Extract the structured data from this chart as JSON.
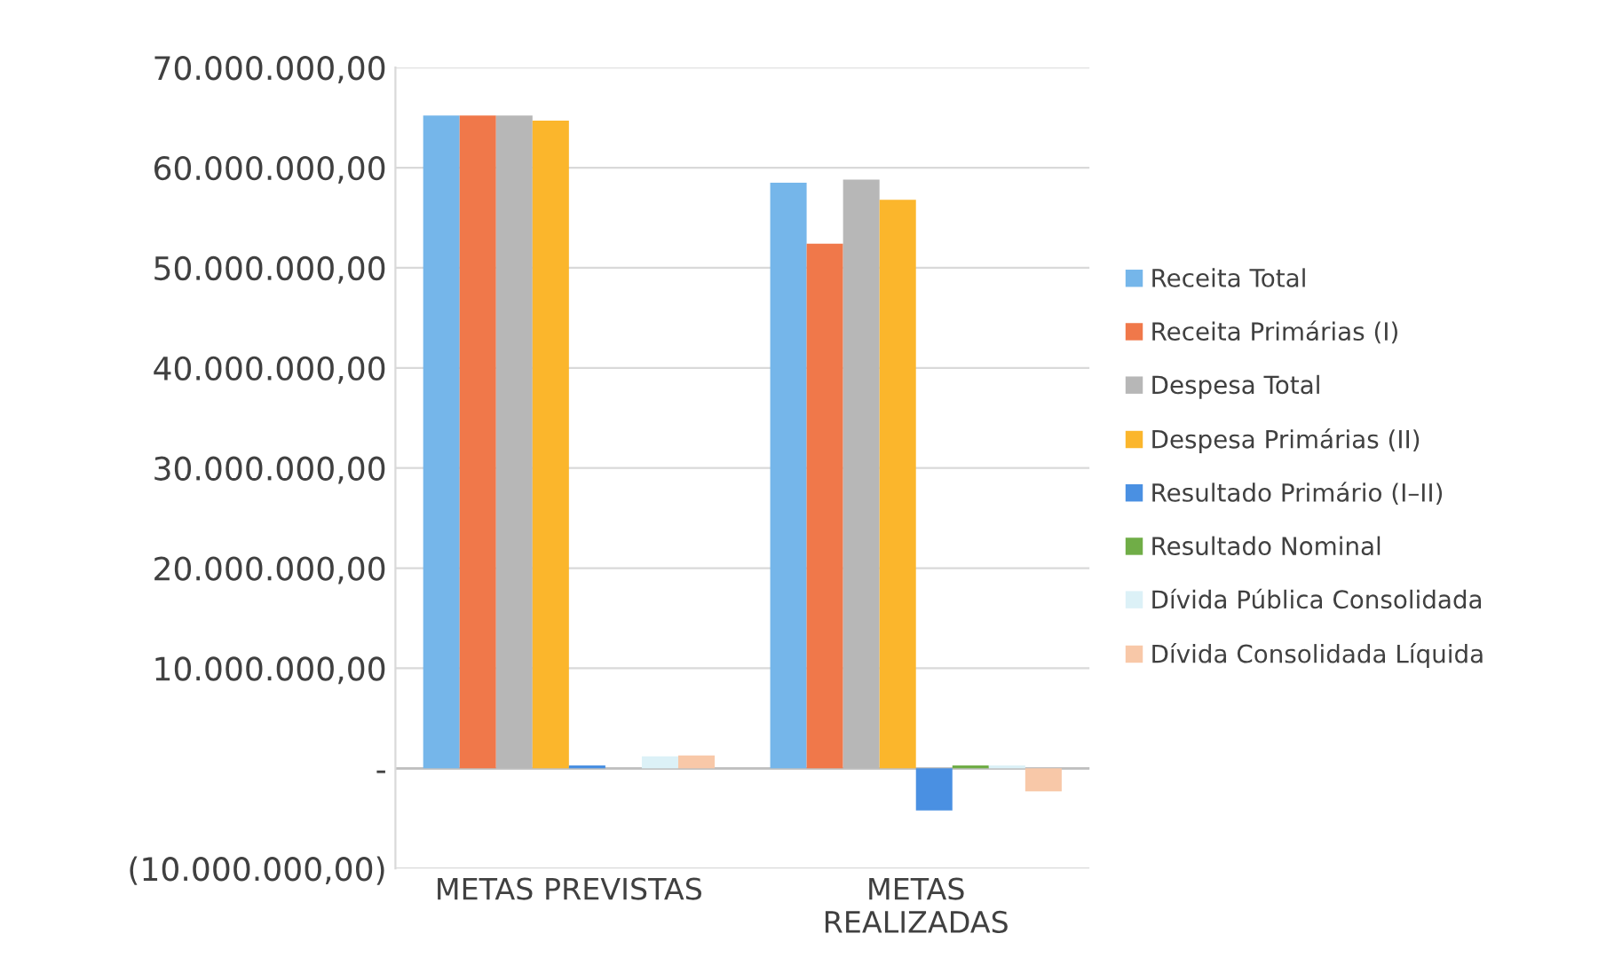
{
  "chart_data": {
    "type": "bar",
    "categories": [
      "METAS PREVISTAS",
      "METAS\nREALIZADAS"
    ],
    "series": [
      {
        "name": "Receita Total",
        "color": "#75b6ea",
        "values": [
          65200000,
          58500000
        ]
      },
      {
        "name": "Receita Primárias (I)",
        "color": "#f0784a",
        "values": [
          65200000,
          52400000
        ]
      },
      {
        "name": "Despesa Total",
        "color": "#b7b7b7",
        "values": [
          65200000,
          58800000
        ]
      },
      {
        "name": "Despesa Primárias (II)",
        "color": "#fbb62c",
        "values": [
          64700000,
          56800000
        ]
      },
      {
        "name": "Resultado Primário (I–II)",
        "color": "#4a90e2",
        "values": [
          300000,
          -4200000
        ]
      },
      {
        "name": "Resultado Nominal",
        "color": "#70ad47",
        "values": [
          0,
          300000
        ]
      },
      {
        "name": "Dívida Pública Consolidada",
        "color": "#dcf1f7",
        "values": [
          1200000,
          300000
        ]
      },
      {
        "name": "Dívida Consolidada Líquida",
        "color": "#f8c8a8",
        "values": [
          1300000,
          -2300000
        ]
      }
    ],
    "ylim": [
      -10000000,
      70000000
    ],
    "yticks": [
      {
        "value": -10000000,
        "label": "(10.000.000,00)"
      },
      {
        "value": 0,
        "label": "-"
      },
      {
        "value": 10000000,
        "label": "10.000.000,00"
      },
      {
        "value": 20000000,
        "label": "20.000.000,00"
      },
      {
        "value": 30000000,
        "label": "30.000.000,00"
      },
      {
        "value": 40000000,
        "label": "40.000.000,00"
      },
      {
        "value": 50000000,
        "label": "50.000.000,00"
      },
      {
        "value": 60000000,
        "label": "60.000.000,00"
      },
      {
        "value": 70000000,
        "label": "70.000.000,00"
      }
    ],
    "grid": "y",
    "legend": "right"
  }
}
